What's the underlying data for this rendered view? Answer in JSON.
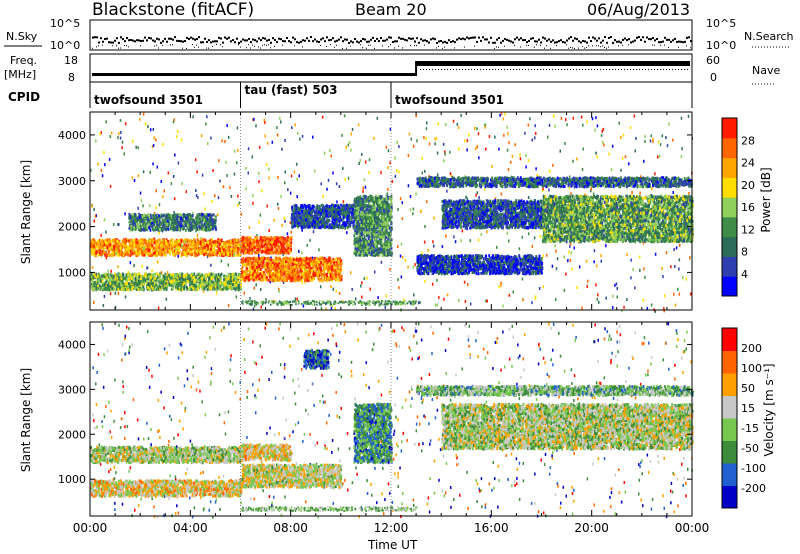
{
  "header": {
    "title": "Blackstone (fitACF)",
    "beam": "Beam 20",
    "date": "06/Aug/2013"
  },
  "top_panels": {
    "nsky_label": "N.Sky",
    "nsky_ticks": [
      "10^5",
      "10^0"
    ],
    "nsearch_label": "N.Search",
    "nsearch_ticks": [
      "10^5",
      "10^0"
    ],
    "freq_label": "Freq.",
    "freq_unit": "[MHz]",
    "freq_ticks": [
      "18",
      "8"
    ],
    "nave_label": "Nave",
    "nave_ticks": [
      "60",
      "0"
    ],
    "cpid_label": "CPID",
    "cpid_segments": [
      {
        "label": "twofsound 3501",
        "start_hour": 0
      },
      {
        "label": "tau (fast) 503",
        "start_hour": 6.0
      },
      {
        "label": "twofsound 3501",
        "start_hour": 12.0
      }
    ]
  },
  "chart_data": [
    {
      "type": "heatmap",
      "name": "power",
      "ylabel": "Slant Range [km]",
      "yticks": [
        "4000",
        "3000",
        "2000",
        "1000"
      ],
      "ylim": [
        180,
        4500
      ],
      "xlim": [
        0,
        24
      ],
      "colorbar_label": "Power [dB]",
      "colorbar_ticks": [
        "28",
        "24",
        "20",
        "16",
        "12",
        "8",
        "4"
      ],
      "colorbar_range": [
        0,
        30
      ],
      "colors": [
        "#0000ff",
        "#2f3fb0",
        "#2c6d5a",
        "#3d8c47",
        "#8fcf5a",
        "#ffdd00",
        "#ffa500",
        "#ff6600",
        "#ff1a00"
      ],
      "regions": [
        {
          "t": [
            0.0,
            6.0
          ],
          "r": [
            1400,
            1750
          ],
          "level": 0.75
        },
        {
          "t": [
            0.0,
            6.0
          ],
          "r": [
            650,
            1000
          ],
          "level": 0.45
        },
        {
          "t": [
            1.5,
            5.0
          ],
          "r": [
            1950,
            2300
          ],
          "level": 0.3
        },
        {
          "t": [
            6.0,
            10.0
          ],
          "r": [
            850,
            1350
          ],
          "level": 0.8
        },
        {
          "t": [
            6.0,
            8.0
          ],
          "r": [
            1450,
            1800
          ],
          "level": 0.85
        },
        {
          "t": [
            8.0,
            10.5
          ],
          "r": [
            2000,
            2500
          ],
          "level": 0.2
        },
        {
          "t": [
            10.5,
            12.0
          ],
          "r": [
            1400,
            2700
          ],
          "level": 0.35
        },
        {
          "t": [
            13.0,
            24.0
          ],
          "r": [
            2900,
            3100
          ],
          "level": 0.25
        },
        {
          "t": [
            14.0,
            18.0
          ],
          "r": [
            2000,
            2600
          ],
          "level": 0.2
        },
        {
          "t": [
            18.0,
            24.0
          ],
          "r": [
            1700,
            2700
          ],
          "level": 0.4
        },
        {
          "t": [
            13.0,
            18.0
          ],
          "r": [
            1000,
            1400
          ],
          "level": 0.15
        }
      ]
    },
    {
      "type": "heatmap",
      "name": "velocity",
      "ylabel": "Slant Range [km]",
      "yticks": [
        "4000",
        "3000",
        "2000",
        "1000"
      ],
      "ylim": [
        180,
        4500
      ],
      "xlim": [
        0,
        24
      ],
      "xlabel": "Time UT",
      "xticks": [
        "00:00",
        "04:00",
        "08:00",
        "12:00",
        "16:00",
        "20:00",
        "00:00"
      ],
      "colorbar_label": "Velocity [m s⁻¹]",
      "colorbar_ticks": [
        "200",
        "100",
        "50",
        "15",
        "-15",
        "-50",
        "-100",
        "-200"
      ],
      "colorbar_range": [
        -250,
        250
      ],
      "colors": [
        "#0000c8",
        "#2060d0",
        "#3c8c3c",
        "#78c850",
        "#c8c8c8",
        "#ffa000",
        "#ff6400",
        "#ff0000"
      ],
      "regions": [
        {
          "t": [
            0.0,
            6.0
          ],
          "r": [
            1400,
            1750
          ],
          "level": 0.5
        },
        {
          "t": [
            0.0,
            6.0
          ],
          "r": [
            650,
            1000
          ],
          "level": 0.6
        },
        {
          "t": [
            6.0,
            10.0
          ],
          "r": [
            850,
            1350
          ],
          "level": 0.55
        },
        {
          "t": [
            6.0,
            8.0
          ],
          "r": [
            1450,
            1800
          ],
          "level": 0.6
        },
        {
          "t": [
            8.5,
            9.5
          ],
          "r": [
            3500,
            3900
          ],
          "level": 0.2
        },
        {
          "t": [
            10.5,
            12.0
          ],
          "r": [
            1400,
            2700
          ],
          "level": 0.3
        },
        {
          "t": [
            13.0,
            24.0
          ],
          "r": [
            2900,
            3100
          ],
          "level": 0.4
        },
        {
          "t": [
            14.0,
            24.0
          ],
          "r": [
            1700,
            2700
          ],
          "level": 0.5
        }
      ]
    }
  ]
}
